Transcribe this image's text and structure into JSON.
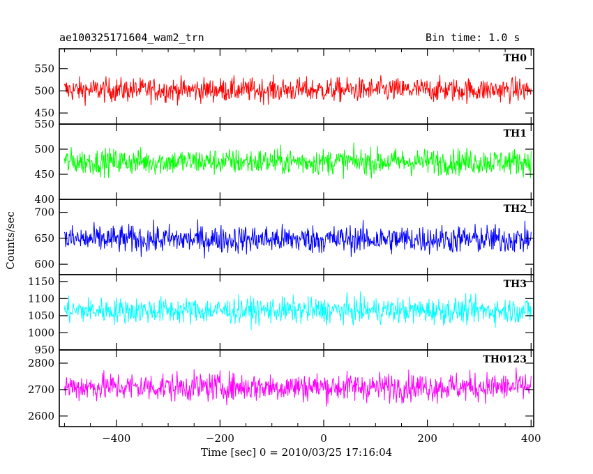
{
  "header": {
    "title": "ae100325171604_wam2_trn",
    "bin_time": "Bin time: 1.0 s"
  },
  "chart_data": {
    "type": "line",
    "xlabel": "Time [sec] 0 = 2010/03/25 17:16:04",
    "ylabel": "Counts/sec",
    "xlim": [
      -510,
      405
    ],
    "x_ticks": [
      -400,
      -200,
      0,
      200,
      400
    ],
    "x_tick_labels": [
      "−400",
      "−200",
      "0",
      "200",
      "400"
    ],
    "x_range": [
      -500,
      400
    ],
    "panels": [
      {
        "name": "TH0",
        "color": "#ff0000",
        "ylim": [
          425,
          595
        ],
        "yticks": [
          450,
          500,
          550
        ],
        "ytick_labels": [
          "450",
          "500",
          "550"
        ],
        "mean": 502,
        "spread": 25
      },
      {
        "name": "TH1",
        "color": "#00ff00",
        "ylim": [
          400,
          550
        ],
        "yticks": [
          400,
          450,
          500,
          550
        ],
        "ytick_labels": [
          "400",
          "450",
          "500",
          "550"
        ],
        "mean": 475,
        "spread": 24
      },
      {
        "name": "TH2",
        "color": "#0000ff",
        "ylim": [
          580,
          725
        ],
        "yticks": [
          600,
          650,
          700
        ],
        "ytick_labels": [
          "600",
          "650",
          "700"
        ],
        "mean": 648,
        "spread": 25
      },
      {
        "name": "TH3",
        "color": "#00ffff",
        "ylim": [
          950,
          1170
        ],
        "yticks": [
          950,
          1000,
          1050,
          1100,
          1150
        ],
        "ytick_labels": [
          "950",
          "1000",
          "1050",
          "1100",
          "1150"
        ],
        "mean": 1065,
        "spread": 35
      },
      {
        "name": "TH0123",
        "color": "#ff00ff",
        "ylim": [
          2560,
          2850
        ],
        "yticks": [
          2600,
          2700,
          2800
        ],
        "ytick_labels": [
          "2600",
          "2700",
          "2800"
        ],
        "mean": 2710,
        "spread": 50
      }
    ]
  }
}
